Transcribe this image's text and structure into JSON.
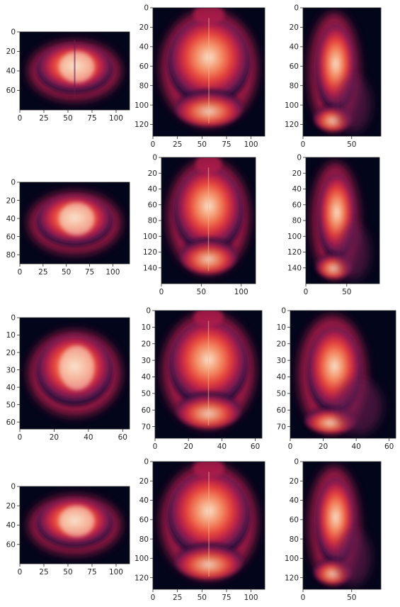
{
  "figure": {
    "background": "#ffffff",
    "axis_color": "#262626",
    "tick_label_color": "#262626",
    "colormap": "rocket",
    "colormap_stops": [
      "#03051a",
      "#2b0f3d",
      "#6b1a4f",
      "#b01f4b",
      "#e33e3a",
      "#f27f5a",
      "#f6b48f",
      "#fae2d2"
    ]
  },
  "chart_data": [
    {
      "type": "heatmap",
      "view": "coronal",
      "row": 1,
      "col": 1,
      "xlim": [
        0,
        114
      ],
      "ylim": [
        80,
        0
      ],
      "x_ticks": [
        0,
        25,
        50,
        75,
        100
      ],
      "y_ticks": [
        0,
        20,
        40,
        60
      ]
    },
    {
      "type": "heatmap",
      "view": "axial",
      "row": 1,
      "col": 2,
      "xlim": [
        0,
        114
      ],
      "ylim": [
        132,
        0
      ],
      "x_ticks": [
        0,
        25,
        50,
        75,
        100
      ],
      "y_ticks": [
        0,
        20,
        40,
        60,
        80,
        100,
        120
      ]
    },
    {
      "type": "heatmap",
      "view": "sagittal",
      "row": 1,
      "col": 3,
      "xlim": [
        0,
        80
      ],
      "ylim": [
        132,
        0
      ],
      "x_ticks": [
        0,
        50
      ],
      "y_ticks": [
        0,
        20,
        40,
        60,
        80,
        100,
        120
      ]
    },
    {
      "type": "heatmap",
      "view": "coronal",
      "row": 2,
      "col": 1,
      "xlim": [
        0,
        118
      ],
      "ylim": [
        90,
        0
      ],
      "x_ticks": [
        0,
        25,
        50,
        75,
        100
      ],
      "y_ticks": [
        0,
        20,
        40,
        60,
        80
      ]
    },
    {
      "type": "heatmap",
      "view": "axial",
      "row": 2,
      "col": 2,
      "xlim": [
        0,
        118
      ],
      "ylim": [
        160,
        0
      ],
      "x_ticks": [
        0,
        50,
        100
      ],
      "y_ticks": [
        0,
        20,
        40,
        60,
        80,
        100,
        120,
        140
      ]
    },
    {
      "type": "heatmap",
      "view": "sagittal",
      "row": 2,
      "col": 3,
      "xlim": [
        0,
        90
      ],
      "ylim": [
        160,
        0
      ],
      "x_ticks": [
        0,
        50
      ],
      "y_ticks": [
        0,
        20,
        40,
        60,
        80,
        100,
        120,
        140
      ]
    },
    {
      "type": "heatmap",
      "view": "coronal",
      "row": 3,
      "col": 1,
      "xlim": [
        0,
        64
      ],
      "ylim": [
        64,
        0
      ],
      "x_ticks": [
        0,
        20,
        40,
        60
      ],
      "y_ticks": [
        0,
        10,
        20,
        30,
        40,
        50,
        60
      ]
    },
    {
      "type": "heatmap",
      "view": "axial",
      "row": 3,
      "col": 2,
      "xlim": [
        0,
        64
      ],
      "ylim": [
        77,
        0
      ],
      "x_ticks": [
        0,
        20,
        40,
        60
      ],
      "y_ticks": [
        0,
        10,
        20,
        30,
        40,
        50,
        60,
        70
      ]
    },
    {
      "type": "heatmap",
      "view": "sagittal",
      "row": 3,
      "col": 3,
      "xlim": [
        0,
        64
      ],
      "ylim": [
        77,
        0
      ],
      "x_ticks": [
        0,
        20,
        40,
        60
      ],
      "y_ticks": [
        0,
        10,
        20,
        30,
        40,
        50,
        60,
        70
      ]
    },
    {
      "type": "heatmap",
      "view": "coronal",
      "row": 4,
      "col": 1,
      "xlim": [
        0,
        114
      ],
      "ylim": [
        80,
        0
      ],
      "x_ticks": [
        0,
        25,
        50,
        75,
        100
      ],
      "y_ticks": [
        0,
        20,
        40,
        60
      ]
    },
    {
      "type": "heatmap",
      "view": "axial",
      "row": 4,
      "col": 2,
      "xlim": [
        0,
        114
      ],
      "ylim": [
        132,
        0
      ],
      "x_ticks": [
        0,
        25,
        50,
        75,
        100
      ],
      "y_ticks": [
        0,
        20,
        40,
        60,
        80,
        100,
        120
      ]
    },
    {
      "type": "heatmap",
      "view": "sagittal",
      "row": 4,
      "col": 3,
      "xlim": [
        0,
        80
      ],
      "ylim": [
        132,
        0
      ],
      "x_ticks": [
        0,
        50
      ],
      "y_ticks": [
        0,
        20,
        40,
        60,
        80,
        100,
        120
      ]
    }
  ]
}
